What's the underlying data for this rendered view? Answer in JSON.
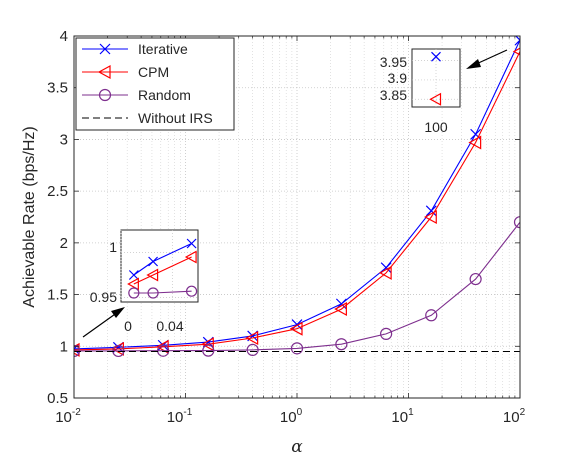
{
  "chart_data": {
    "type": "line",
    "xscale": "log",
    "xlim": [
      0.01,
      100
    ],
    "ylim": [
      0.5,
      4
    ],
    "xlabel": "α",
    "ylabel": "Achievable Rate (bps/Hz)",
    "x_ticks": [
      {
        "base": "10",
        "exp": "-2"
      },
      {
        "base": "10",
        "exp": "-1"
      },
      {
        "base": "10",
        "exp": "0"
      },
      {
        "base": "10",
        "exp": "1"
      },
      {
        "base": "10",
        "exp": "2"
      }
    ],
    "y_ticks": [
      "0.5",
      "1",
      "1.5",
      "2",
      "2.5",
      "3",
      "3.5",
      "4"
    ],
    "grid": true,
    "legend_position": "top-left",
    "x": [
      0.01,
      0.025,
      0.063,
      0.16,
      0.4,
      1,
      2.5,
      6.3,
      16,
      40,
      100
    ],
    "series": [
      {
        "name": "Iterative",
        "color": "#0000ff",
        "marker": "x",
        "values": [
          0.975,
          0.99,
          1.01,
          1.04,
          1.1,
          1.21,
          1.41,
          1.76,
          2.31,
          3.05,
          3.96
        ]
      },
      {
        "name": "CPM",
        "color": "#ff0000",
        "marker": "triangle-left",
        "values": [
          0.965,
          0.975,
          0.995,
          1.02,
          1.08,
          1.17,
          1.36,
          1.71,
          2.25,
          2.97,
          3.85
        ]
      },
      {
        "name": "Random",
        "color": "#7e2f8e",
        "marker": "circle",
        "values": [
          0.955,
          0.955,
          0.957,
          0.958,
          0.965,
          0.98,
          1.02,
          1.12,
          1.3,
          1.65,
          2.2
        ]
      },
      {
        "name": "Without IRS",
        "color": "#000000",
        "dash": true,
        "values": [
          0.95,
          0.95,
          0.95,
          0.95,
          0.95,
          0.95,
          0.95,
          0.95,
          0.95,
          0.95,
          0.95
        ]
      }
    ],
    "insets": [
      {
        "y_ticks": [
          "1",
          "0.95"
        ],
        "x_ticks": [
          "0",
          "0.04"
        ],
        "xlim": [
          0,
          0.06
        ],
        "ylim": [
          0.945,
          1.025
        ],
        "x": [
          0.01,
          0.025,
          0.055
        ]
      },
      {
        "y_ticks": [
          "3.95",
          "3.9",
          "3.85"
        ],
        "x_ticks": [
          "100"
        ],
        "xlim": [
          98,
          102
        ],
        "ylim": [
          3.83,
          3.98
        ],
        "x": [
          100
        ]
      }
    ]
  }
}
